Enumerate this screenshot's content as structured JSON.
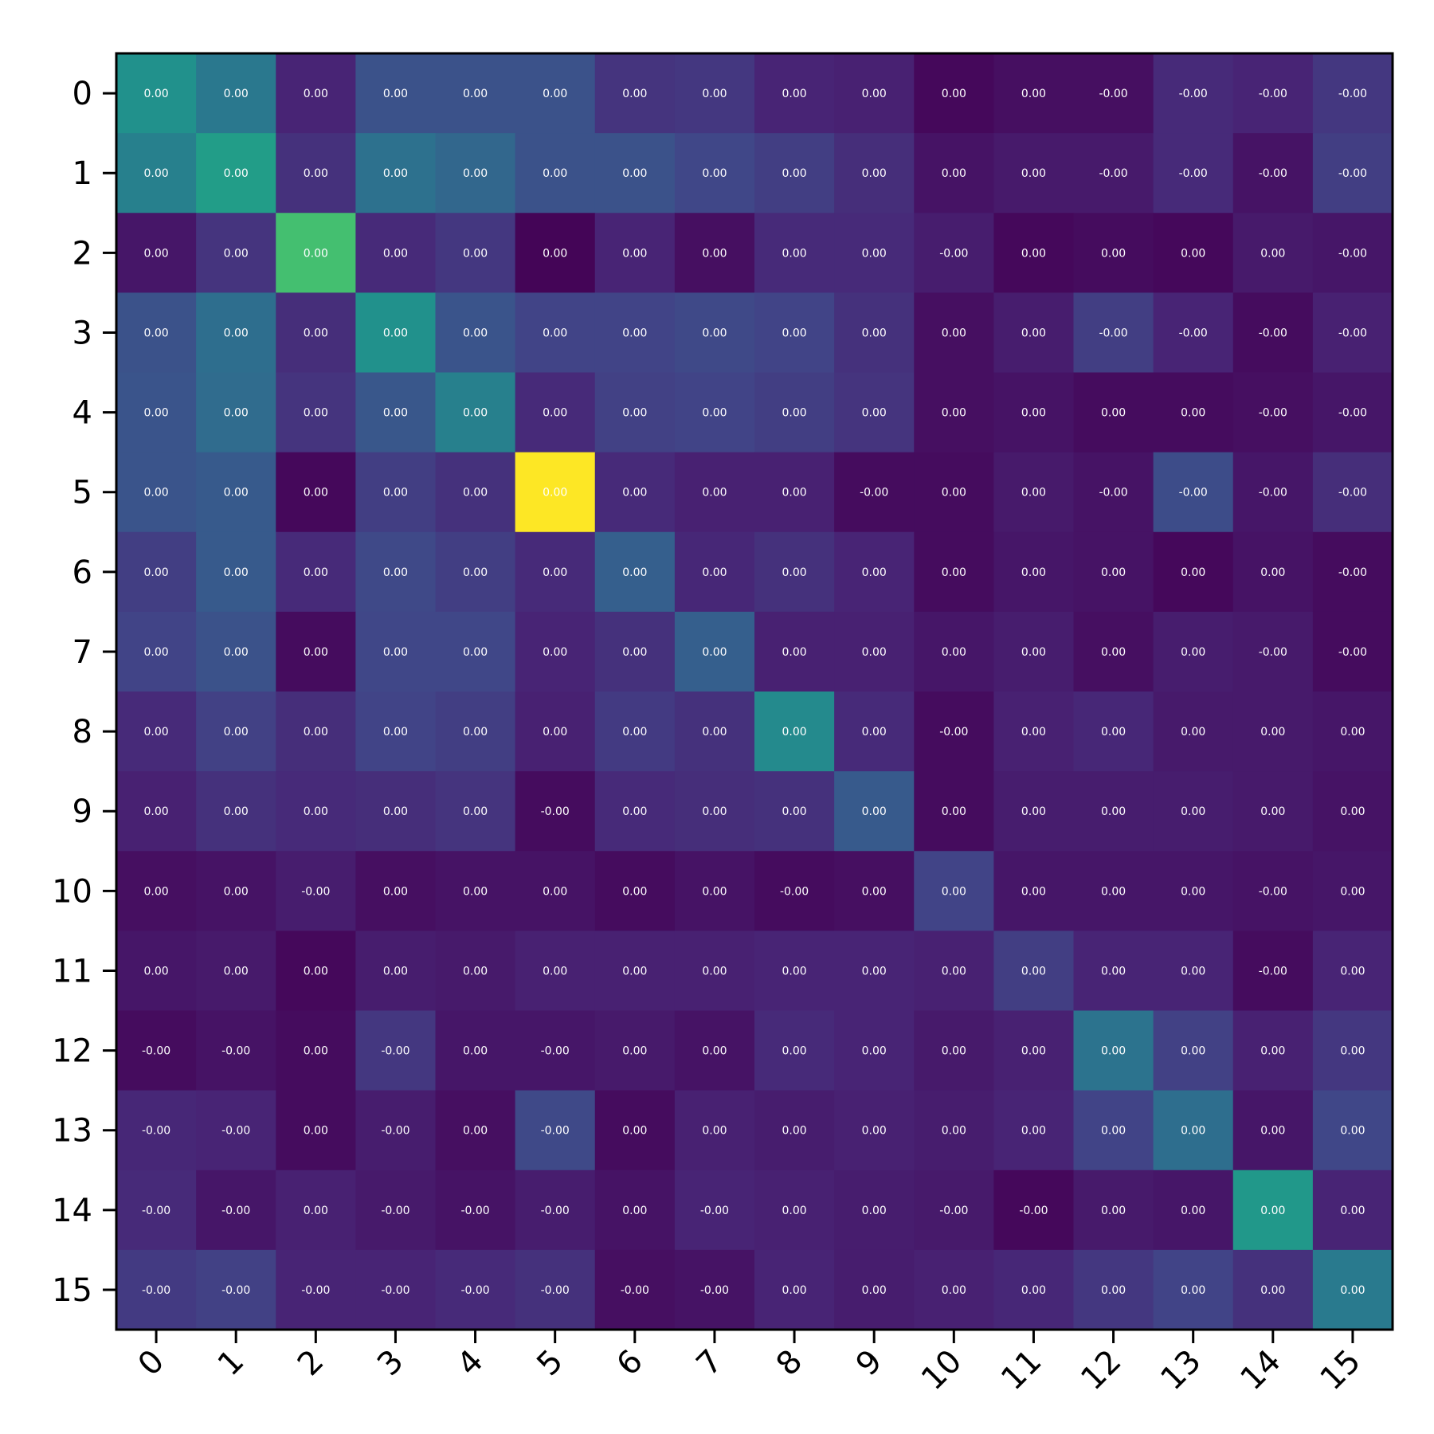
{
  "chart_data": {
    "type": "heatmap",
    "title": "",
    "xlabel": "",
    "ylabel": "",
    "x_categories": [
      "0",
      "1",
      "2",
      "3",
      "4",
      "5",
      "6",
      "7",
      "8",
      "9",
      "10",
      "11",
      "12",
      "13",
      "14",
      "15"
    ],
    "y_categories": [
      "0",
      "1",
      "2",
      "3",
      "4",
      "5",
      "6",
      "7",
      "8",
      "9",
      "10",
      "11",
      "12",
      "13",
      "14",
      "15"
    ],
    "colormap": "viridis",
    "x_tick_rotation_deg": 45,
    "grid": false,
    "colorbar": false,
    "intensity": [
      [
        0.5,
        0.4,
        0.1,
        0.25,
        0.25,
        0.25,
        0.15,
        0.16,
        0.1,
        0.09,
        0.02,
        0.04,
        0.04,
        0.12,
        0.1,
        0.16
      ],
      [
        0.43,
        0.55,
        0.14,
        0.37,
        0.33,
        0.25,
        0.25,
        0.21,
        0.18,
        0.13,
        0.05,
        0.07,
        0.07,
        0.12,
        0.05,
        0.18
      ],
      [
        0.06,
        0.15,
        0.7,
        0.12,
        0.16,
        0.01,
        0.1,
        0.04,
        0.12,
        0.12,
        0.08,
        0.02,
        0.03,
        0.02,
        0.07,
        0.06
      ],
      [
        0.25,
        0.36,
        0.13,
        0.5,
        0.26,
        0.2,
        0.2,
        0.22,
        0.2,
        0.14,
        0.04,
        0.08,
        0.18,
        0.1,
        0.03,
        0.09
      ],
      [
        0.26,
        0.35,
        0.15,
        0.27,
        0.43,
        0.12,
        0.19,
        0.2,
        0.18,
        0.15,
        0.04,
        0.05,
        0.03,
        0.03,
        0.04,
        0.06
      ],
      [
        0.26,
        0.28,
        0.02,
        0.18,
        0.14,
        1.0,
        0.12,
        0.09,
        0.09,
        0.03,
        0.03,
        0.07,
        0.05,
        0.23,
        0.06,
        0.13
      ],
      [
        0.18,
        0.28,
        0.12,
        0.22,
        0.18,
        0.12,
        0.3,
        0.11,
        0.14,
        0.1,
        0.03,
        0.06,
        0.05,
        0.02,
        0.05,
        0.03
      ],
      [
        0.2,
        0.25,
        0.03,
        0.21,
        0.21,
        0.1,
        0.14,
        0.3,
        0.09,
        0.09,
        0.06,
        0.08,
        0.04,
        0.08,
        0.07,
        0.03
      ],
      [
        0.12,
        0.19,
        0.13,
        0.2,
        0.18,
        0.09,
        0.17,
        0.14,
        0.47,
        0.12,
        0.03,
        0.09,
        0.11,
        0.07,
        0.07,
        0.06
      ],
      [
        0.09,
        0.14,
        0.12,
        0.13,
        0.15,
        0.03,
        0.12,
        0.13,
        0.14,
        0.28,
        0.03,
        0.08,
        0.08,
        0.08,
        0.07,
        0.05
      ],
      [
        0.04,
        0.05,
        0.08,
        0.04,
        0.05,
        0.05,
        0.03,
        0.05,
        0.03,
        0.04,
        0.2,
        0.06,
        0.06,
        0.06,
        0.05,
        0.06
      ],
      [
        0.06,
        0.07,
        0.02,
        0.08,
        0.07,
        0.09,
        0.09,
        0.09,
        0.1,
        0.1,
        0.09,
        0.18,
        0.1,
        0.1,
        0.03,
        0.1
      ],
      [
        0.03,
        0.05,
        0.03,
        0.16,
        0.06,
        0.06,
        0.07,
        0.05,
        0.12,
        0.1,
        0.07,
        0.09,
        0.38,
        0.19,
        0.09,
        0.16
      ],
      [
        0.11,
        0.1,
        0.03,
        0.08,
        0.04,
        0.22,
        0.03,
        0.09,
        0.08,
        0.09,
        0.08,
        0.1,
        0.2,
        0.36,
        0.06,
        0.21
      ],
      [
        0.12,
        0.06,
        0.09,
        0.07,
        0.05,
        0.08,
        0.05,
        0.1,
        0.09,
        0.08,
        0.07,
        0.02,
        0.07,
        0.06,
        0.53,
        0.1
      ],
      [
        0.17,
        0.19,
        0.1,
        0.1,
        0.12,
        0.14,
        0.04,
        0.05,
        0.1,
        0.08,
        0.09,
        0.11,
        0.16,
        0.2,
        0.14,
        0.41
      ]
    ],
    "cell_labels": [
      [
        "0.00",
        "0.00",
        "0.00",
        "0.00",
        "0.00",
        "0.00",
        "0.00",
        "0.00",
        "0.00",
        "0.00",
        "0.00",
        "0.00",
        "-0.00",
        "-0.00",
        "-0.00",
        "-0.00"
      ],
      [
        "0.00",
        "0.00",
        "0.00",
        "0.00",
        "0.00",
        "0.00",
        "0.00",
        "0.00",
        "0.00",
        "0.00",
        "0.00",
        "0.00",
        "-0.00",
        "-0.00",
        "-0.00",
        "-0.00"
      ],
      [
        "0.00",
        "0.00",
        "0.00",
        "0.00",
        "0.00",
        "0.00",
        "0.00",
        "0.00",
        "0.00",
        "0.00",
        "-0.00",
        "0.00",
        "0.00",
        "0.00",
        "0.00",
        "-0.00"
      ],
      [
        "0.00",
        "0.00",
        "0.00",
        "0.00",
        "0.00",
        "0.00",
        "0.00",
        "0.00",
        "0.00",
        "0.00",
        "0.00",
        "0.00",
        "-0.00",
        "-0.00",
        "-0.00",
        "-0.00"
      ],
      [
        "0.00",
        "0.00",
        "0.00",
        "0.00",
        "0.00",
        "0.00",
        "0.00",
        "0.00",
        "0.00",
        "0.00",
        "0.00",
        "0.00",
        "0.00",
        "0.00",
        "-0.00",
        "-0.00"
      ],
      [
        "0.00",
        "0.00",
        "0.00",
        "0.00",
        "0.00",
        "0.00",
        "0.00",
        "0.00",
        "0.00",
        "-0.00",
        "0.00",
        "0.00",
        "-0.00",
        "-0.00",
        "-0.00",
        "-0.00"
      ],
      [
        "0.00",
        "0.00",
        "0.00",
        "0.00",
        "0.00",
        "0.00",
        "0.00",
        "0.00",
        "0.00",
        "0.00",
        "0.00",
        "0.00",
        "0.00",
        "0.00",
        "0.00",
        "-0.00"
      ],
      [
        "0.00",
        "0.00",
        "0.00",
        "0.00",
        "0.00",
        "0.00",
        "0.00",
        "0.00",
        "0.00",
        "0.00",
        "0.00",
        "0.00",
        "0.00",
        "0.00",
        "-0.00",
        "-0.00"
      ],
      [
        "0.00",
        "0.00",
        "0.00",
        "0.00",
        "0.00",
        "0.00",
        "0.00",
        "0.00",
        "0.00",
        "0.00",
        "-0.00",
        "0.00",
        "0.00",
        "0.00",
        "0.00",
        "0.00"
      ],
      [
        "0.00",
        "0.00",
        "0.00",
        "0.00",
        "0.00",
        "-0.00",
        "0.00",
        "0.00",
        "0.00",
        "0.00",
        "0.00",
        "0.00",
        "0.00",
        "0.00",
        "0.00",
        "0.00"
      ],
      [
        "0.00",
        "0.00",
        "-0.00",
        "0.00",
        "0.00",
        "0.00",
        "0.00",
        "0.00",
        "-0.00",
        "0.00",
        "0.00",
        "0.00",
        "0.00",
        "0.00",
        "-0.00",
        "0.00"
      ],
      [
        "0.00",
        "0.00",
        "0.00",
        "0.00",
        "0.00",
        "0.00",
        "0.00",
        "0.00",
        "0.00",
        "0.00",
        "0.00",
        "0.00",
        "0.00",
        "0.00",
        "-0.00",
        "0.00"
      ],
      [
        "-0.00",
        "-0.00",
        "0.00",
        "-0.00",
        "0.00",
        "-0.00",
        "0.00",
        "0.00",
        "0.00",
        "0.00",
        "0.00",
        "0.00",
        "0.00",
        "0.00",
        "0.00",
        "0.00"
      ],
      [
        "-0.00",
        "-0.00",
        "0.00",
        "-0.00",
        "0.00",
        "-0.00",
        "0.00",
        "0.00",
        "0.00",
        "0.00",
        "0.00",
        "0.00",
        "0.00",
        "0.00",
        "0.00",
        "0.00"
      ],
      [
        "-0.00",
        "-0.00",
        "0.00",
        "-0.00",
        "-0.00",
        "-0.00",
        "0.00",
        "-0.00",
        "0.00",
        "0.00",
        "-0.00",
        "-0.00",
        "0.00",
        "0.00",
        "0.00",
        "0.00"
      ],
      [
        "-0.00",
        "-0.00",
        "-0.00",
        "-0.00",
        "-0.00",
        "-0.00",
        "-0.00",
        "-0.00",
        "0.00",
        "0.00",
        "0.00",
        "0.00",
        "0.00",
        "0.00",
        "0.00",
        "0.00"
      ]
    ]
  }
}
